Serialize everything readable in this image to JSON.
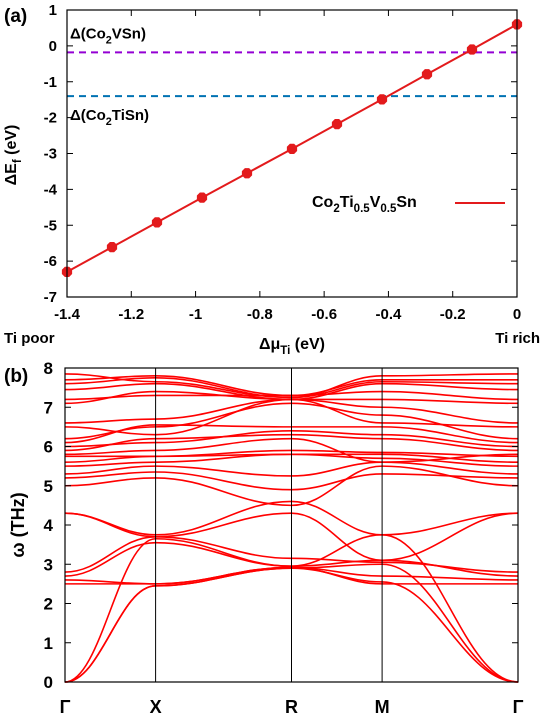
{
  "chart_data": [
    {
      "type": "line",
      "panel_label": "(a)",
      "xlabel_main": "Δμ",
      "xlabel_sub": "Ti",
      "xlabel_unit": " (eV)",
      "ylabel_main": "ΔE",
      "ylabel_sub": "f",
      "ylabel_unit": " (eV)",
      "xlim": [
        -1.4,
        0
      ],
      "ylim": [
        -7,
        1
      ],
      "x_ticks": [
        -1.4,
        -1.2,
        -1,
        -0.8,
        -0.6,
        -0.4,
        -0.2,
        0
      ],
      "x_tick_labels": [
        "-1.4",
        "-1.2",
        "-1",
        "-0.8",
        "-0.6",
        "-0.4",
        "-0.2",
        "0"
      ],
      "y_ticks": [
        -7,
        -6,
        -5,
        -4,
        -3,
        -2,
        -1,
        0,
        1
      ],
      "y_tick_labels": [
        "-7",
        "-6",
        "-5",
        "-4",
        "-3",
        "-2",
        "-1",
        "0",
        "1"
      ],
      "x_end_labels": {
        "left": "Ti poor",
        "right": "Ti rich"
      },
      "series": [
        {
          "name": "Co2Ti0.5V0.5Sn",
          "legend_parts": [
            {
              "t": "Co",
              "s": "n"
            },
            {
              "t": "2",
              "s": "sub"
            },
            {
              "t": "Ti",
              "s": "n"
            },
            {
              "t": "0.5",
              "s": "sub"
            },
            {
              "t": "V",
              "s": "n"
            },
            {
              "t": "0.5",
              "s": "sub"
            },
            {
              "t": "Sn",
              "s": "n"
            }
          ],
          "color": "#e31a1c",
          "x": [
            -1.4,
            -1.26,
            -1.12,
            -0.98,
            -0.84,
            -0.7,
            -0.56,
            -0.42,
            -0.28,
            -0.14,
            0
          ],
          "y": [
            -6.3,
            -5.61,
            -4.92,
            -4.23,
            -3.55,
            -2.87,
            -2.18,
            -1.49,
            -0.79,
            -0.1,
            0.6
          ]
        }
      ],
      "reference_lines": [
        {
          "name": "Δ(Co2VSn)",
          "label_parts": [
            {
              "t": "Δ(Co",
              "s": "n"
            },
            {
              "t": "2",
              "s": "sub"
            },
            {
              "t": "VSn)",
              "s": "n"
            }
          ],
          "y": -0.18,
          "color": "#9400d3"
        },
        {
          "name": "Δ(Co2TiSn)",
          "label_parts": [
            {
              "t": "Δ(Co",
              "s": "n"
            },
            {
              "t": "2",
              "s": "sub"
            },
            {
              "t": "TiSn)",
              "s": "n"
            }
          ],
          "y": -1.4,
          "color": "#0072b2"
        }
      ],
      "grid": false,
      "legend_position": "right"
    },
    {
      "type": "line",
      "panel_label": "(b)",
      "ylabel": "ω (THz)",
      "ylim": [
        0,
        8
      ],
      "y_ticks": [
        0,
        1,
        2,
        3,
        4,
        5,
        6,
        7,
        8
      ],
      "y_tick_labels": [
        "0",
        "1",
        "2",
        "3",
        "4",
        "5",
        "6",
        "7",
        "8"
      ],
      "kpoints": [
        "Γ",
        "X",
        "R",
        "M",
        "Γ"
      ],
      "kpoint_positions": [
        0,
        0.2,
        0.5,
        0.7,
        1.0
      ],
      "band_color": "#ff0000",
      "zero_line_color": "#5555ff",
      "grid": false,
      "bands": [
        {
          "x": [
            0,
            0.2,
            0.5,
            0.7,
            1.0
          ],
          "y": [
            0,
            2.45,
            2.9,
            2.55,
            0
          ]
        },
        {
          "x": [
            0,
            0.2,
            0.5,
            0.7,
            1.0
          ],
          "y": [
            0,
            2.45,
            2.9,
            3.0,
            0
          ]
        },
        {
          "x": [
            0,
            0.2,
            0.5,
            0.7,
            1.0
          ],
          "y": [
            0,
            3.65,
            2.95,
            3.75,
            0
          ]
        },
        {
          "x": [
            0,
            0.2,
            0.5,
            0.7,
            1.0
          ],
          "y": [
            2.5,
            2.5,
            2.92,
            2.5,
            2.5
          ]
        },
        {
          "x": [
            0,
            0.2,
            0.5,
            0.7,
            1.0
          ],
          "y": [
            2.6,
            2.5,
            2.92,
            2.7,
            2.6
          ]
        },
        {
          "x": [
            0,
            0.2,
            0.5,
            0.7,
            1.0
          ],
          "y": [
            2.7,
            3.55,
            2.95,
            3.1,
            2.7
          ]
        },
        {
          "x": [
            0,
            0.2,
            0.5,
            0.7,
            1.0
          ],
          "y": [
            2.8,
            3.7,
            3.15,
            3.05,
            2.8
          ]
        },
        {
          "x": [
            0,
            0.2,
            0.5,
            0.7,
            1.0
          ],
          "y": [
            4.3,
            3.7,
            4.3,
            3.1,
            4.3
          ]
        },
        {
          "x": [
            0,
            0.2,
            0.5,
            0.7,
            1.0
          ],
          "y": [
            4.3,
            3.75,
            4.6,
            3.75,
            4.3
          ]
        },
        {
          "x": [
            0,
            0.2,
            0.5,
            0.7,
            1.0
          ],
          "y": [
            5.0,
            5.2,
            4.5,
            5.5,
            5.0
          ]
        },
        {
          "x": [
            0,
            0.2,
            0.5,
            0.7,
            1.0
          ],
          "y": [
            5.2,
            5.35,
            4.9,
            5.3,
            5.2
          ]
        },
        {
          "x": [
            0,
            0.2,
            0.5,
            0.7,
            1.0
          ],
          "y": [
            5.3,
            5.5,
            5.25,
            5.6,
            5.3
          ]
        },
        {
          "x": [
            0,
            0.2,
            0.5,
            0.7,
            1.0
          ],
          "y": [
            5.5,
            5.6,
            5.8,
            5.7,
            5.5
          ]
        },
        {
          "x": [
            0,
            0.2,
            0.5,
            0.7,
            1.0
          ],
          "y": [
            5.6,
            5.75,
            5.8,
            5.8,
            5.6
          ]
        },
        {
          "x": [
            0,
            0.2,
            0.5,
            0.7,
            1.0
          ],
          "y": [
            5.75,
            5.75,
            5.9,
            5.85,
            5.75
          ]
        },
        {
          "x": [
            0,
            0.2,
            0.5,
            0.7,
            1.0
          ],
          "y": [
            5.8,
            5.9,
            6.2,
            5.6,
            5.8
          ]
        },
        {
          "x": [
            0,
            0.2,
            0.5,
            0.7,
            1.0
          ],
          "y": [
            5.9,
            6.2,
            6.3,
            6.2,
            5.9
          ]
        },
        {
          "x": [
            0,
            0.2,
            0.5,
            0.7,
            1.0
          ],
          "y": [
            6.0,
            6.1,
            6.4,
            6.3,
            6.0
          ]
        },
        {
          "x": [
            0,
            0.2,
            0.5,
            0.7,
            1.0
          ],
          "y": [
            6.1,
            6.55,
            6.5,
            6.5,
            6.1
          ]
        },
        {
          "x": [
            0,
            0.2,
            0.5,
            0.7,
            1.0
          ],
          "y": [
            6.2,
            6.5,
            7.1,
            6.8,
            6.2
          ]
        },
        {
          "x": [
            0,
            0.2,
            0.5,
            0.7,
            1.0
          ],
          "y": [
            6.5,
            6.3,
            7.2,
            6.6,
            6.5
          ]
        },
        {
          "x": [
            0,
            0.2,
            0.5,
            0.7,
            1.0
          ],
          "y": [
            6.6,
            6.7,
            7.2,
            7.0,
            6.6
          ]
        },
        {
          "x": [
            0,
            0.2,
            0.5,
            0.7,
            1.0
          ],
          "y": [
            7.1,
            7.4,
            7.2,
            7.2,
            7.1
          ]
        },
        {
          "x": [
            0,
            0.2,
            0.5,
            0.7,
            1.0
          ],
          "y": [
            7.2,
            7.3,
            7.3,
            7.4,
            7.2
          ]
        },
        {
          "x": [
            0,
            0.2,
            0.5,
            0.7,
            1.0
          ],
          "y": [
            7.45,
            7.6,
            7.2,
            7.6,
            7.45
          ]
        },
        {
          "x": [
            0,
            0.2,
            0.5,
            0.7,
            1.0
          ],
          "y": [
            7.6,
            7.75,
            7.25,
            7.65,
            7.6
          ]
        },
        {
          "x": [
            0,
            0.2,
            0.5,
            0.7,
            1.0
          ],
          "y": [
            7.7,
            7.8,
            7.3,
            7.7,
            7.7
          ]
        },
        {
          "x": [
            0,
            0.2,
            0.5,
            0.7,
            1.0
          ],
          "y": [
            7.85,
            7.65,
            7.25,
            7.8,
            7.85
          ]
        }
      ]
    }
  ]
}
